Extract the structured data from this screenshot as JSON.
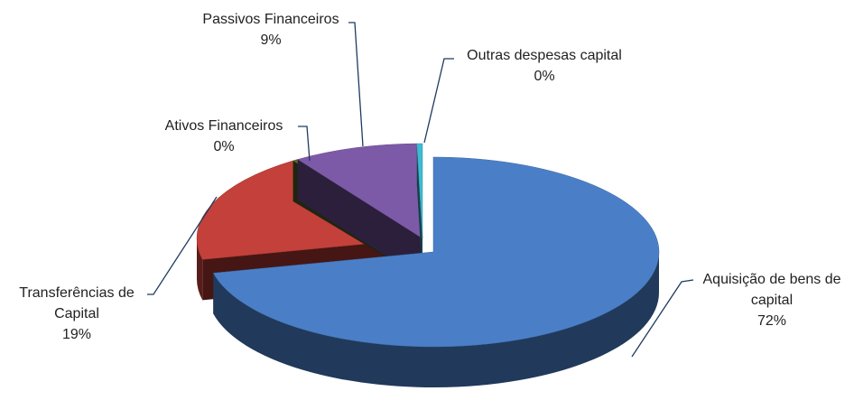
{
  "chart_data": {
    "type": "pie",
    "categories": [
      "Aquisição de bens de capital",
      "Transferências de Capital",
      "Ativos Financeiros",
      "Passivos Financeiros",
      "Outras despesas capital"
    ],
    "values": [
      72,
      19,
      0.4,
      9,
      0.4
    ],
    "value_labels": [
      "72%",
      "19%",
      "0%",
      "9%",
      "0%"
    ],
    "colors": [
      "#4a7fc8",
      "#c4403a",
      "#5a6b2e",
      "#7d5aa8",
      "#3fbad2"
    ]
  }
}
